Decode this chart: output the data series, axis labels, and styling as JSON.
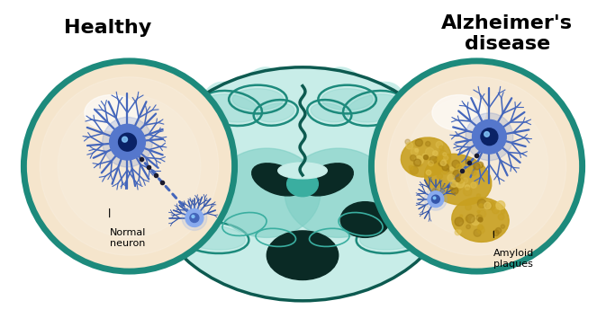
{
  "background_color": "#ffffff",
  "title_left": "Healthy",
  "title_right": "Alzheimer's\ndisease",
  "label_left": "Normal\nneuron",
  "label_right": "Amyloid\nplaques",
  "title_fontsize": 16,
  "label_fontsize": 8,
  "brain_light": "#c8ede8",
  "brain_mid": "#7ecec4",
  "brain_dark": "#3aaea0",
  "brain_darker": "#1d8a7c",
  "brain_darkest": "#0d5a50",
  "brain_inner_dark": "#0a2a25",
  "circle_bg": "#f5e5cc",
  "circle_bg2": "#fdf5e8",
  "circle_border": "#1d8a7c",
  "neuron_blue": "#4466bb",
  "neuron_light": "#7799dd",
  "neuron_soma": "#5577cc",
  "neuron_nucleus": "#1a4488",
  "neuron_nucleus2": "#0a2266",
  "axon_color": "#4466bb",
  "axon_terminal": "#88aaee",
  "axon_terminal_dark": "#3355aa",
  "plaque_color": "#c8a020",
  "plaque_dark": "#a07810",
  "plaque_light": "#e0c050"
}
